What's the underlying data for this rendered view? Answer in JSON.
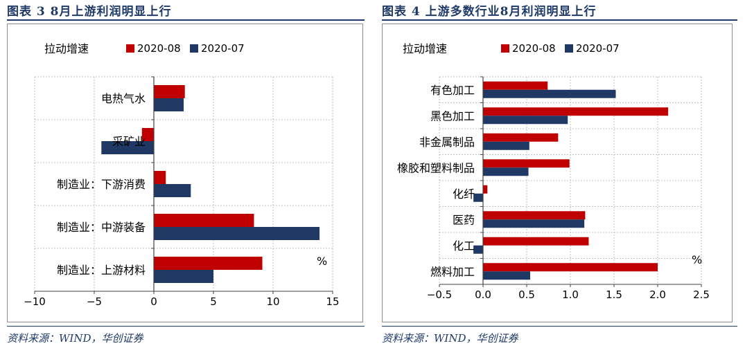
{
  "colors": {
    "series1": "#c00000",
    "series2": "#1f3864",
    "title": "#1f3a68",
    "grid": "#bfbfbf"
  },
  "charts": [
    {
      "title": "图表 3   8月上游利润明显上行",
      "source": "资料来源：WIND，华创证券",
      "chart_data": {
        "type": "bar",
        "orientation": "horizontal",
        "legend_title": "拉动增速",
        "unit": "%",
        "categories": [
          "电热气水",
          "采矿业",
          "制造业：下游消费",
          "制造业：中游装备",
          "制造业：上游材料"
        ],
        "series": [
          {
            "name": "2020-08",
            "values": [
              2.6,
              -1.0,
              1.0,
              8.4,
              9.1
            ]
          },
          {
            "name": "2020-07",
            "values": [
              2.5,
              -4.4,
              3.1,
              13.9,
              5.0
            ]
          }
        ],
        "xlim": [
          -10,
          15
        ],
        "xticks": [
          "−10",
          "−5",
          "0",
          "5",
          "10",
          "15"
        ],
        "xtick_values": [
          -10,
          -5,
          0,
          5,
          10,
          15
        ],
        "grid": true,
        "legend_position": "top"
      }
    },
    {
      "title": "图表 4   上游多数行业8月利润明显上行",
      "source": "资料来源：WIND，华创证券",
      "chart_data": {
        "type": "bar",
        "orientation": "horizontal",
        "legend_title": "拉动增速",
        "unit": "%",
        "categories": [
          "有色加工",
          "黑色加工",
          "非金属制品",
          "橡胶和塑料制品",
          "化纤",
          "医药",
          "化工",
          "燃料加工"
        ],
        "series": [
          {
            "name": "2020-08",
            "values": [
              0.74,
              2.12,
              0.86,
              0.99,
              0.05,
              1.17,
              1.21,
              2.0
            ]
          },
          {
            "name": "2020-07",
            "values": [
              1.52,
              0.97,
              0.53,
              0.52,
              -0.11,
              1.16,
              -0.11,
              0.54
            ]
          }
        ],
        "xlim": [
          -0.5,
          2.5
        ],
        "xticks": [
          "−0.5",
          "0.0",
          "0.5",
          "1.0",
          "1.5",
          "2.0",
          "2.5"
        ],
        "xtick_values": [
          -0.5,
          0.0,
          0.5,
          1.0,
          1.5,
          2.0,
          2.5
        ],
        "grid": true,
        "legend_position": "top"
      }
    }
  ]
}
